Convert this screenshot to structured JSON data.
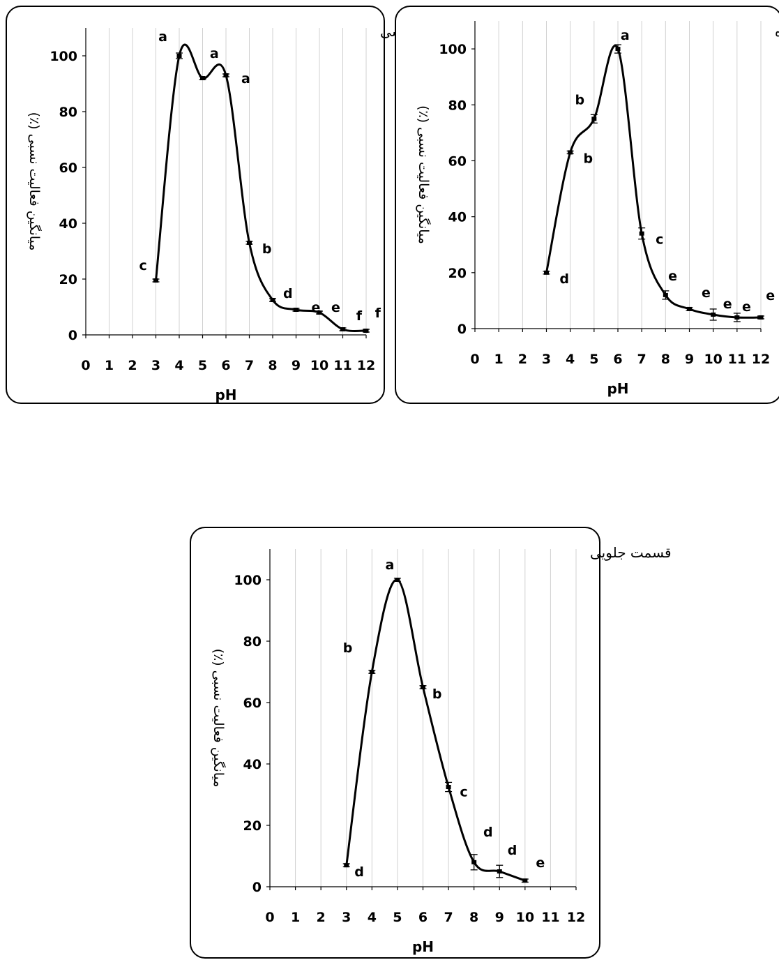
{
  "figure": {
    "chart_data": [
      {
        "type": "line",
        "title": "غدد گوارشی",
        "xlabel": "pH",
        "ylabel": "میانگین فعالیت نسبی (٪)",
        "x_ticks": [
          "0",
          "1",
          "2",
          "3",
          "4",
          "5",
          "6",
          "7",
          "8",
          "9",
          "10",
          "11",
          "12"
        ],
        "y_ticks": [
          "0",
          "20",
          "40",
          "60",
          "80",
          "100"
        ],
        "xlim": [
          0,
          12
        ],
        "ylim": [
          0,
          110
        ],
        "grid": "vertical",
        "x": [
          3,
          4,
          5,
          6,
          7,
          8,
          9,
          10,
          11,
          12
        ],
        "y": [
          19.5,
          100,
          92,
          93,
          33,
          12.5,
          9,
          8,
          2,
          1.5
        ],
        "errors": [
          0.5,
          1,
          0.5,
          0.5,
          0.5,
          0.5,
          0.5,
          0.5,
          0.5,
          0.5
        ],
        "letters": [
          {
            "text": "a",
            "x": 3.3,
            "y": 107
          },
          {
            "text": "a",
            "x": 5.5,
            "y": 101
          },
          {
            "text": "a",
            "x": 6.85,
            "y": 92
          },
          {
            "text": "c",
            "x": 2.45,
            "y": 25
          },
          {
            "text": "b",
            "x": 7.75,
            "y": 31
          },
          {
            "text": "d",
            "x": 8.65,
            "y": 15
          },
          {
            "text": "e",
            "x": 9.85,
            "y": 10
          },
          {
            "text": "e",
            "x": 10.7,
            "y": 10
          },
          {
            "text": "f",
            "x": 11.7,
            "y": 7
          },
          {
            "text": "f",
            "x": 12.5,
            "y": 8
          }
        ]
      },
      {
        "type": "line",
        "title": "روده",
        "xlabel": "pH",
        "ylabel": "میانگین فعالیت نسبی (٪)",
        "x_ticks": [
          "0",
          "1",
          "2",
          "3",
          "4",
          "5",
          "6",
          "7",
          "8",
          "9",
          "10",
          "11",
          "12"
        ],
        "y_ticks": [
          "0",
          "20",
          "40",
          "60",
          "80",
          "100"
        ],
        "xlim": [
          0,
          12
        ],
        "ylim": [
          0,
          110
        ],
        "grid": "vertical",
        "x": [
          3,
          4,
          5,
          6,
          7,
          8,
          9,
          10,
          11,
          12
        ],
        "y": [
          20,
          63,
          75,
          100,
          34,
          12,
          7,
          5,
          4,
          4
        ],
        "errors": [
          0.5,
          0.5,
          1.5,
          1.5,
          2,
          1.5,
          0.5,
          2,
          1.5,
          0.5
        ],
        "letters": [
          {
            "text": "a",
            "x": 6.3,
            "y": 105
          },
          {
            "text": "b",
            "x": 4.4,
            "y": 82
          },
          {
            "text": "b",
            "x": 4.75,
            "y": 61
          },
          {
            "text": "c",
            "x": 7.75,
            "y": 32
          },
          {
            "text": "d",
            "x": 3.75,
            "y": 18
          },
          {
            "text": "e",
            "x": 8.3,
            "y": 19
          },
          {
            "text": "e",
            "x": 9.7,
            "y": 13
          },
          {
            "text": "e",
            "x": 10.6,
            "y": 9
          },
          {
            "text": "e",
            "x": 11.4,
            "y": 8
          },
          {
            "text": "e",
            "x": 12.4,
            "y": 12
          }
        ]
      },
      {
        "type": "line",
        "title": "قسمت جلویی",
        "xlabel": "pH",
        "ylabel": "میانگین فعالیت نسبی (٪)",
        "x_ticks": [
          "0",
          "1",
          "2",
          "3",
          "4",
          "5",
          "6",
          "7",
          "8",
          "9",
          "10",
          "11",
          "12"
        ],
        "y_ticks": [
          "0",
          "20",
          "40",
          "60",
          "80",
          "100"
        ],
        "xlim": [
          0,
          12
        ],
        "ylim": [
          0,
          110
        ],
        "grid": "vertical",
        "x": [
          3,
          4,
          5,
          6,
          7,
          8,
          9,
          10
        ],
        "y": [
          7,
          70,
          100,
          65,
          32.5,
          8,
          5,
          2
        ],
        "errors": [
          0.5,
          0.5,
          0.5,
          0.5,
          1.5,
          2.5,
          2,
          0.5
        ],
        "letters": [
          {
            "text": "a",
            "x": 4.7,
            "y": 105
          },
          {
            "text": "b",
            "x": 3.05,
            "y": 78
          },
          {
            "text": "b",
            "x": 6.55,
            "y": 63
          },
          {
            "text": "c",
            "x": 7.6,
            "y": 31
          },
          {
            "text": "d",
            "x": 3.5,
            "y": 5
          },
          {
            "text": "d",
            "x": 8.55,
            "y": 18
          },
          {
            "text": "d",
            "x": 9.5,
            "y": 12
          },
          {
            "text": "e",
            "x": 10.6,
            "y": 8
          }
        ]
      }
    ]
  }
}
